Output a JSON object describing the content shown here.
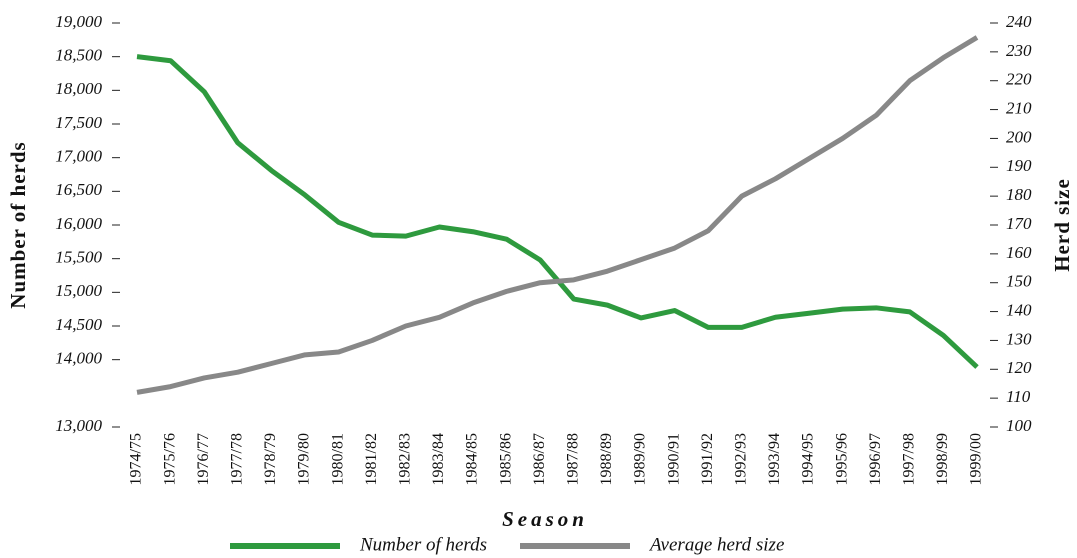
{
  "chart_data": {
    "type": "line",
    "categories": [
      "1974/75",
      "1975/76",
      "1976/77",
      "1977/78",
      "1978/79",
      "1979/80",
      "1980/81",
      "1981/82",
      "1982/83",
      "1983/84",
      "1984/85",
      "1985/86",
      "1986/87",
      "1987/88",
      "1988/89",
      "1989/90",
      "1990/91",
      "1991/92",
      "1992/93",
      "1993/94",
      "1994/95",
      "1995/96",
      "1996/97",
      "1997/98",
      "1998/99",
      "1999/00"
    ],
    "series": [
      {
        "name": "Number of herds",
        "color": "#2e9a3e",
        "values": [
          18500,
          18440,
          17980,
          17220,
          16810,
          16445,
          16040,
          15850,
          15835,
          15970,
          15900,
          15790,
          15480,
          14900,
          14810,
          14620,
          14730,
          14480,
          14480,
          14630,
          14690,
          14750,
          14770,
          14710,
          14360,
          13890
        ]
      },
      {
        "name": "Average herd size",
        "color": "#888888",
        "axis": "y2",
        "values": [
          112,
          114,
          117,
          119,
          122,
          125,
          126,
          130,
          135,
          138,
          143,
          147,
          150,
          151,
          154,
          158,
          162,
          168,
          180,
          186,
          193,
          200,
          208,
          220,
          228,
          235
        ]
      }
    ],
    "xlabel": "Season",
    "ylabel": "Number of herds",
    "y2label": "Herd size",
    "ylim": [
      13000,
      19000
    ],
    "yticks": [
      {
        "value": 13000,
        "label": "13,000"
      },
      {
        "value": 14000,
        "label": "14,000"
      },
      {
        "value": 14500,
        "label": "14,500"
      },
      {
        "value": 15000,
        "label": "15,000"
      },
      {
        "value": 15500,
        "label": "15,500"
      },
      {
        "value": 16000,
        "label": "16,000"
      },
      {
        "value": 16500,
        "label": "16,500"
      },
      {
        "value": 17000,
        "label": "17,000"
      },
      {
        "value": 17500,
        "label": "17,500"
      },
      {
        "value": 18000,
        "label": "18,000"
      },
      {
        "value": 18500,
        "label": "18,500"
      },
      {
        "value": 19000,
        "label": "19,000"
      }
    ],
    "y2lim": [
      100,
      240
    ],
    "y2ticks": [
      100,
      110,
      120,
      130,
      140,
      150,
      160,
      170,
      180,
      190,
      200,
      210,
      220,
      230,
      240
    ]
  }
}
